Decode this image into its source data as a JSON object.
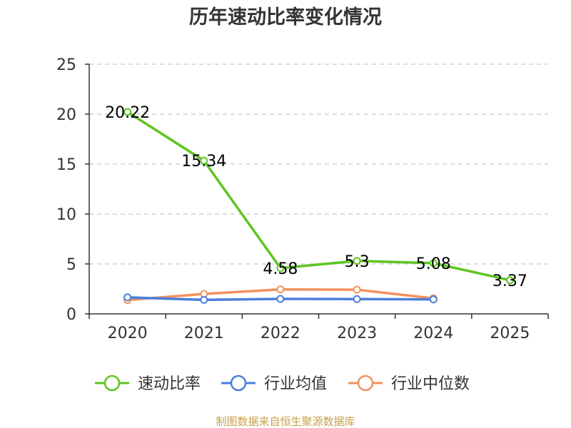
{
  "chart_data": {
    "type": "line",
    "title": "历年速动比率变化情况",
    "xlabel": "",
    "ylabel": "",
    "categories": [
      "2020",
      "2021",
      "2022",
      "2023",
      "2024",
      "2025"
    ],
    "ylim": [
      0,
      25
    ],
    "yticks": [
      0,
      5,
      10,
      15,
      20,
      25
    ],
    "grid": true,
    "legend_position": "bottom",
    "series": [
      {
        "name": "速动比率",
        "color": "#5ec521",
        "values": [
          20.22,
          15.34,
          4.58,
          5.3,
          5.08,
          3.37
        ],
        "labels": [
          "20.22",
          "15.34",
          "4.58",
          "5.3",
          "5.08",
          "3.37"
        ]
      },
      {
        "name": "行业均值",
        "color": "#4a7fdc",
        "values": [
          1.65,
          1.4,
          1.5,
          1.48,
          1.45,
          null
        ]
      },
      {
        "name": "行业中位数",
        "color": "#f2925e",
        "values": [
          1.38,
          2.0,
          2.45,
          2.42,
          1.55,
          null
        ]
      }
    ],
    "source": "制图数据来自恒生聚源数据库"
  }
}
